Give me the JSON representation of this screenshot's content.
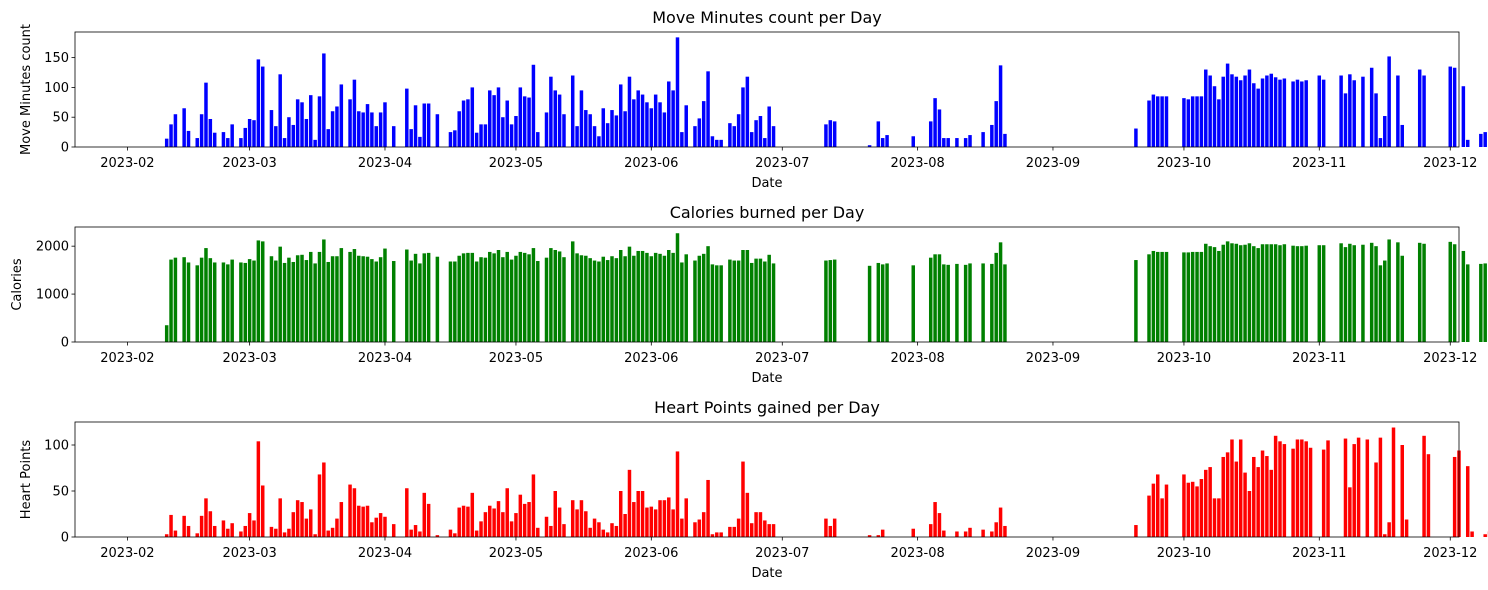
{
  "chart_data": [
    {
      "type": "bar",
      "title": "Move Minutes count per Day",
      "xlabel": "Date",
      "ylabel": "Move Minutes count",
      "color": "#0000ff",
      "ylim": [
        0,
        193
      ],
      "yticks": [
        0,
        50,
        100,
        150
      ],
      "xlim": [
        "2023-01-20",
        "2023-12-03"
      ],
      "xticks": [
        "2023-02",
        "2023-03",
        "2023-04",
        "2023-05",
        "2023-06",
        "2023-07",
        "2023-08",
        "2023-09",
        "2023-10",
        "2023-11",
        "2023-12"
      ],
      "start_date": "2023-02-01",
      "values": [
        null,
        null,
        null,
        null,
        null,
        null,
        null,
        null,
        null,
        14,
        38,
        55,
        null,
        65,
        27,
        null,
        15,
        55,
        108,
        47,
        24,
        null,
        25,
        15,
        38,
        null,
        15,
        32,
        47,
        45,
        147,
        135,
        null,
        62,
        35,
        122,
        15,
        50,
        37,
        80,
        75,
        47,
        87,
        12,
        85,
        157,
        30,
        60,
        68,
        105,
        null,
        80,
        113,
        60,
        58,
        72,
        58,
        35,
        58,
        75,
        null,
        35,
        null,
        null,
        98,
        30,
        70,
        17,
        73,
        73,
        null,
        55,
        null,
        null,
        25,
        28,
        60,
        78,
        80,
        100,
        24,
        38,
        38,
        95,
        87,
        100,
        50,
        78,
        38,
        52,
        100,
        85,
        83,
        138,
        25,
        null,
        58,
        118,
        95,
        88,
        55,
        null,
        120,
        35,
        95,
        62,
        55,
        35,
        18,
        65,
        40,
        62,
        53,
        105,
        60,
        118,
        80,
        95,
        88,
        75,
        65,
        88,
        75,
        58,
        110,
        95,
        184,
        25,
        70,
        null,
        35,
        48,
        77,
        127,
        18,
        12,
        12,
        null,
        40,
        35,
        55,
        100,
        118,
        25,
        45,
        52,
        15,
        68,
        35,
        null,
        null,
        null,
        null,
        null,
        null,
        null,
        null,
        null,
        null,
        null,
        38,
        45,
        43,
        null,
        null,
        null,
        null,
        null,
        null,
        null,
        3,
        null,
        43,
        15,
        20,
        null,
        null,
        null,
        null,
        null,
        18,
        null,
        null,
        null,
        43,
        82,
        63,
        15,
        15,
        null,
        15,
        null,
        15,
        20,
        null,
        null,
        25,
        null,
        37,
        77,
        137,
        22,
        null,
        null,
        null,
        null,
        null,
        null,
        null,
        null,
        null,
        null,
        null,
        null,
        null,
        null,
        null,
        null,
        null,
        null,
        null,
        null,
        null,
        null,
        null,
        null,
        null,
        null,
        null,
        null,
        null,
        31,
        null,
        null,
        78,
        88,
        85,
        85,
        85,
        null,
        null,
        null,
        82,
        80,
        85,
        85,
        85,
        130,
        120,
        102,
        80,
        118,
        140,
        122,
        118,
        112,
        120,
        130,
        107,
        98,
        115,
        120,
        123,
        117,
        113,
        115,
        null,
        110,
        113,
        110,
        112,
        null,
        null,
        120,
        113,
        null,
        null,
        null,
        120,
        90,
        122,
        112,
        null,
        118,
        null,
        133,
        90,
        15,
        52,
        152,
        null,
        120,
        37,
        null,
        null,
        null,
        130,
        120,
        null,
        null,
        null,
        null,
        null,
        135,
        133,
        null,
        102,
        12,
        null,
        null,
        22,
        25
      ]
    },
    {
      "type": "bar",
      "title": "Calories burned per Day",
      "xlabel": "Date",
      "ylabel": "Calories",
      "color": "#008000",
      "ylim": [
        0,
        2400
      ],
      "yticks": [
        0,
        1000,
        2000
      ],
      "xlim": [
        "2023-01-20",
        "2023-12-03"
      ],
      "xticks": [
        "2023-02",
        "2023-03",
        "2023-04",
        "2023-05",
        "2023-06",
        "2023-07",
        "2023-08",
        "2023-09",
        "2023-10",
        "2023-11",
        "2023-12"
      ],
      "start_date": "2023-02-01",
      "values": [
        null,
        null,
        null,
        null,
        null,
        null,
        null,
        null,
        null,
        350,
        1720,
        1760,
        null,
        1770,
        1660,
        null,
        1600,
        1760,
        1960,
        1750,
        1660,
        null,
        1660,
        1620,
        1720,
        null,
        1660,
        1650,
        1730,
        1700,
        2120,
        2100,
        null,
        1790,
        1700,
        1990,
        1650,
        1760,
        1670,
        1810,
        1820,
        1710,
        1880,
        1640,
        1880,
        2140,
        1670,
        1790,
        1790,
        1960,
        null,
        1880,
        1940,
        1800,
        1790,
        1780,
        1730,
        1680,
        1770,
        1950,
        null,
        1690,
        null,
        null,
        1930,
        1700,
        1840,
        1640,
        1850,
        1860,
        null,
        1780,
        null,
        null,
        1680,
        1680,
        1800,
        1850,
        1860,
        1860,
        1680,
        1770,
        1760,
        1880,
        1850,
        1920,
        1770,
        1880,
        1720,
        1800,
        1880,
        1860,
        1830,
        1960,
        1690,
        null,
        1760,
        1960,
        1920,
        1890,
        1770,
        null,
        2100,
        1850,
        1810,
        1800,
        1750,
        1700,
        1680,
        1780,
        1710,
        1790,
        1750,
        1920,
        1790,
        1990,
        1800,
        1900,
        1900,
        1860,
        1790,
        1860,
        1840,
        1800,
        1920,
        1860,
        2270,
        1660,
        1830,
        null,
        1700,
        1800,
        1840,
        2000,
        1620,
        1600,
        1600,
        null,
        1720,
        1700,
        1700,
        1920,
        1920,
        1650,
        1740,
        1740,
        1680,
        1820,
        1640,
        null,
        null,
        null,
        null,
        null,
        null,
        null,
        null,
        null,
        null,
        null,
        1700,
        1710,
        1720,
        null,
        null,
        null,
        null,
        null,
        null,
        null,
        1590,
        null,
        1650,
        1620,
        1640,
        null,
        null,
        null,
        null,
        null,
        1600,
        null,
        null,
        null,
        1760,
        1830,
        1830,
        1620,
        1610,
        null,
        1630,
        null,
        1610,
        1640,
        null,
        null,
        1640,
        null,
        1630,
        1860,
        2080,
        1620,
        null,
        null,
        null,
        null,
        null,
        null,
        null,
        null,
        null,
        null,
        null,
        null,
        null,
        null,
        null,
        null,
        null,
        null,
        null,
        null,
        null,
        null,
        null,
        null,
        null,
        null,
        null,
        null,
        null,
        1710,
        null,
        null,
        1830,
        1900,
        1880,
        1880,
        1880,
        null,
        null,
        null,
        1870,
        1870,
        1880,
        1880,
        1880,
        2050,
        2000,
        1980,
        1900,
        2030,
        2100,
        2060,
        2050,
        2020,
        2030,
        2060,
        2000,
        1960,
        2040,
        2040,
        2040,
        2040,
        2020,
        2040,
        null,
        2010,
        2000,
        2000,
        2010,
        null,
        null,
        2020,
        2020,
        null,
        null,
        null,
        2060,
        1980,
        2050,
        2020,
        null,
        2030,
        null,
        2070,
        2000,
        1600,
        1700,
        2140,
        null,
        2080,
        1800,
        null,
        null,
        null,
        2070,
        2050,
        null,
        null,
        null,
        null,
        null,
        2090,
        2040,
        null,
        1900,
        1620,
        null,
        null,
        1630,
        1640
      ]
    },
    {
      "type": "bar",
      "title": "Heart Points gained per Day",
      "xlabel": "Date",
      "ylabel": "Heart Points",
      "color": "#ff0000",
      "ylim": [
        0,
        125
      ],
      "yticks": [
        0,
        50,
        100
      ],
      "xlim": [
        "2023-01-20",
        "2023-12-03"
      ],
      "xticks": [
        "2023-02",
        "2023-03",
        "2023-04",
        "2023-05",
        "2023-06",
        "2023-07",
        "2023-08",
        "2023-09",
        "2023-10",
        "2023-11",
        "2023-12"
      ],
      "start_date": "2023-02-01",
      "values": [
        null,
        null,
        null,
        null,
        null,
        null,
        null,
        null,
        null,
        3,
        24,
        7,
        null,
        23,
        12,
        null,
        4,
        23,
        42,
        28,
        12,
        null,
        18,
        9,
        15,
        null,
        6,
        12,
        26,
        18,
        104,
        56,
        null,
        11,
        9,
        42,
        5,
        9,
        27,
        40,
        38,
        20,
        30,
        3,
        68,
        81,
        7,
        10,
        20,
        38,
        null,
        57,
        53,
        34,
        33,
        34,
        16,
        21,
        26,
        22,
        null,
        14,
        null,
        null,
        53,
        8,
        13,
        6,
        48,
        36,
        null,
        2,
        null,
        null,
        8,
        4,
        32,
        34,
        33,
        48,
        7,
        17,
        27,
        34,
        31,
        39,
        27,
        53,
        17,
        26,
        46,
        36,
        38,
        68,
        10,
        null,
        22,
        12,
        50,
        32,
        14,
        null,
        40,
        30,
        40,
        28,
        10,
        20,
        16,
        8,
        5,
        15,
        12,
        50,
        25,
        73,
        38,
        50,
        50,
        32,
        33,
        30,
        40,
        40,
        43,
        30,
        93,
        20,
        42,
        null,
        16,
        19,
        27,
        62,
        3,
        5,
        5,
        null,
        11,
        11,
        20,
        82,
        48,
        15,
        27,
        27,
        18,
        14,
        14,
        null,
        null,
        null,
        null,
        null,
        null,
        null,
        null,
        null,
        null,
        null,
        20,
        12,
        20,
        null,
        null,
        null,
        null,
        null,
        null,
        null,
        2,
        null,
        2,
        8,
        null,
        null,
        null,
        null,
        null,
        null,
        9,
        null,
        null,
        null,
        14,
        38,
        26,
        7,
        null,
        null,
        6,
        null,
        6,
        10,
        null,
        null,
        8,
        null,
        6,
        16,
        32,
        12,
        null,
        null,
        null,
        null,
        null,
        null,
        null,
        null,
        null,
        null,
        null,
        null,
        null,
        null,
        null,
        null,
        null,
        null,
        null,
        null,
        null,
        null,
        null,
        null,
        null,
        null,
        null,
        null,
        null,
        13,
        null,
        null,
        45,
        58,
        68,
        42,
        57,
        null,
        null,
        null,
        68,
        59,
        60,
        55,
        63,
        73,
        76,
        42,
        42,
        87,
        92,
        106,
        82,
        106,
        70,
        50,
        87,
        76,
        94,
        88,
        73,
        110,
        104,
        101,
        null,
        96,
        106,
        106,
        104,
        97,
        null,
        null,
        95,
        105,
        null,
        null,
        null,
        107,
        54,
        101,
        108,
        null,
        106,
        null,
        81,
        108,
        3,
        16,
        119,
        null,
        100,
        19,
        null,
        null,
        null,
        110,
        90,
        null,
        null,
        null,
        null,
        null,
        87,
        94,
        null,
        77,
        6,
        null,
        null,
        3,
        6
      ]
    }
  ]
}
